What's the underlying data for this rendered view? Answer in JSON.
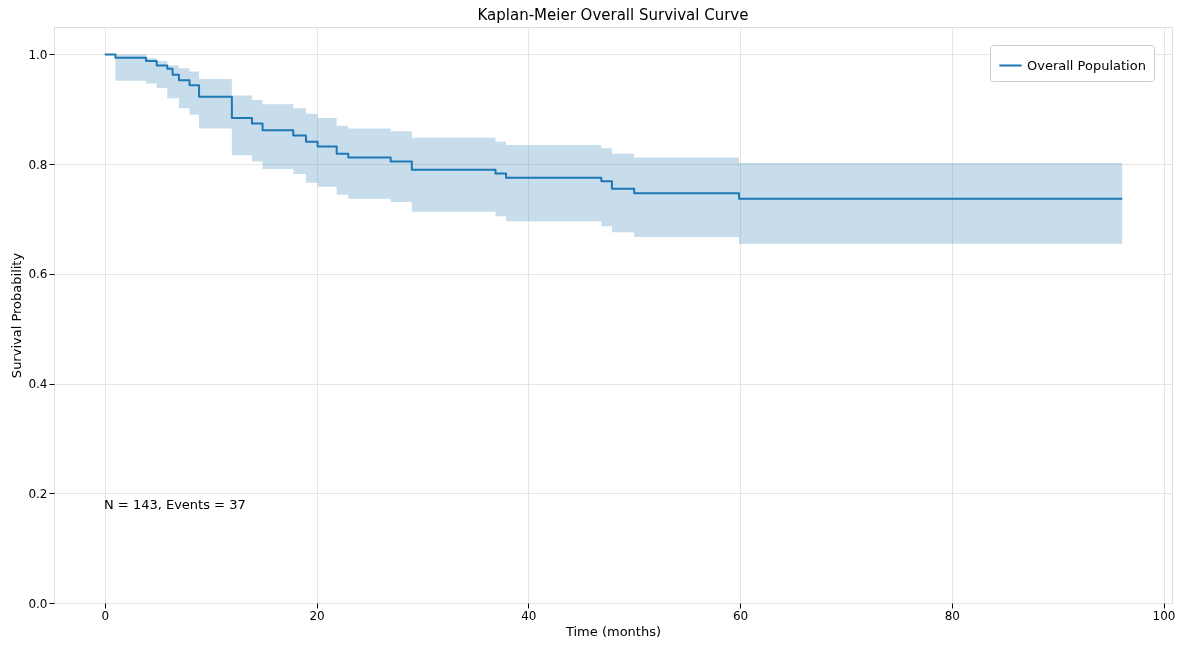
{
  "chart_data": {
    "type": "step",
    "title": "Kaplan-Meier Overall Survival Curve",
    "xlabel": "Time (months)",
    "ylabel": "Survival Probability",
    "x": [
      0,
      1.0,
      3.9,
      4.9,
      5.9,
      6.4,
      7.0,
      8.0,
      8.9,
      12.0,
      13.9,
      14.9,
      17.8,
      19.0,
      20.1,
      21.9,
      23.0,
      27.0,
      29.0,
      36.9,
      37.9,
      46.9,
      47.9,
      50.0,
      59.9,
      96.1
    ],
    "series": [
      {
        "name": "Overall Population",
        "color": "#1f77b4",
        "values": [
          1.0,
          0.994,
          0.988,
          0.98,
          0.974,
          0.963,
          0.953,
          0.944,
          0.923,
          0.884,
          0.874,
          0.862,
          0.852,
          0.841,
          0.832,
          0.819,
          0.812,
          0.805,
          0.79,
          0.783,
          0.775,
          0.769,
          0.755,
          0.747,
          0.737,
          0.737
        ],
        "upper": [
          1.0,
          1.0,
          0.993,
          0.988,
          0.98,
          0.98,
          0.975,
          0.969,
          0.955,
          0.925,
          0.917,
          0.909,
          0.902,
          0.892,
          0.884,
          0.87,
          0.865,
          0.86,
          0.848,
          0.841,
          0.835,
          0.829,
          0.819,
          0.812,
          0.802,
          0.802
        ],
        "lower": [
          1.0,
          0.952,
          0.947,
          0.939,
          0.92,
          0.92,
          0.902,
          0.89,
          0.865,
          0.816,
          0.805,
          0.791,
          0.782,
          0.766,
          0.759,
          0.744,
          0.737,
          0.731,
          0.713,
          0.705,
          0.696,
          0.687,
          0.676,
          0.667,
          0.655,
          0.655
        ]
      }
    ],
    "xlim": [
      -4.8,
      100.8
    ],
    "xticks": [
      0,
      20,
      40,
      60,
      80,
      100
    ],
    "ylim": [
      0,
      1.05
    ],
    "yticks": [
      {
        "value": 0,
        "label": "0.0"
      },
      0.2,
      0.4,
      0.6,
      0.8,
      {
        "value": 1,
        "label": "1.0"
      }
    ],
    "grid": true,
    "legend": "top right",
    "line_style": "solid",
    "marker": "none",
    "annotations": [
      "N = 143, Events = 37"
    ]
  }
}
